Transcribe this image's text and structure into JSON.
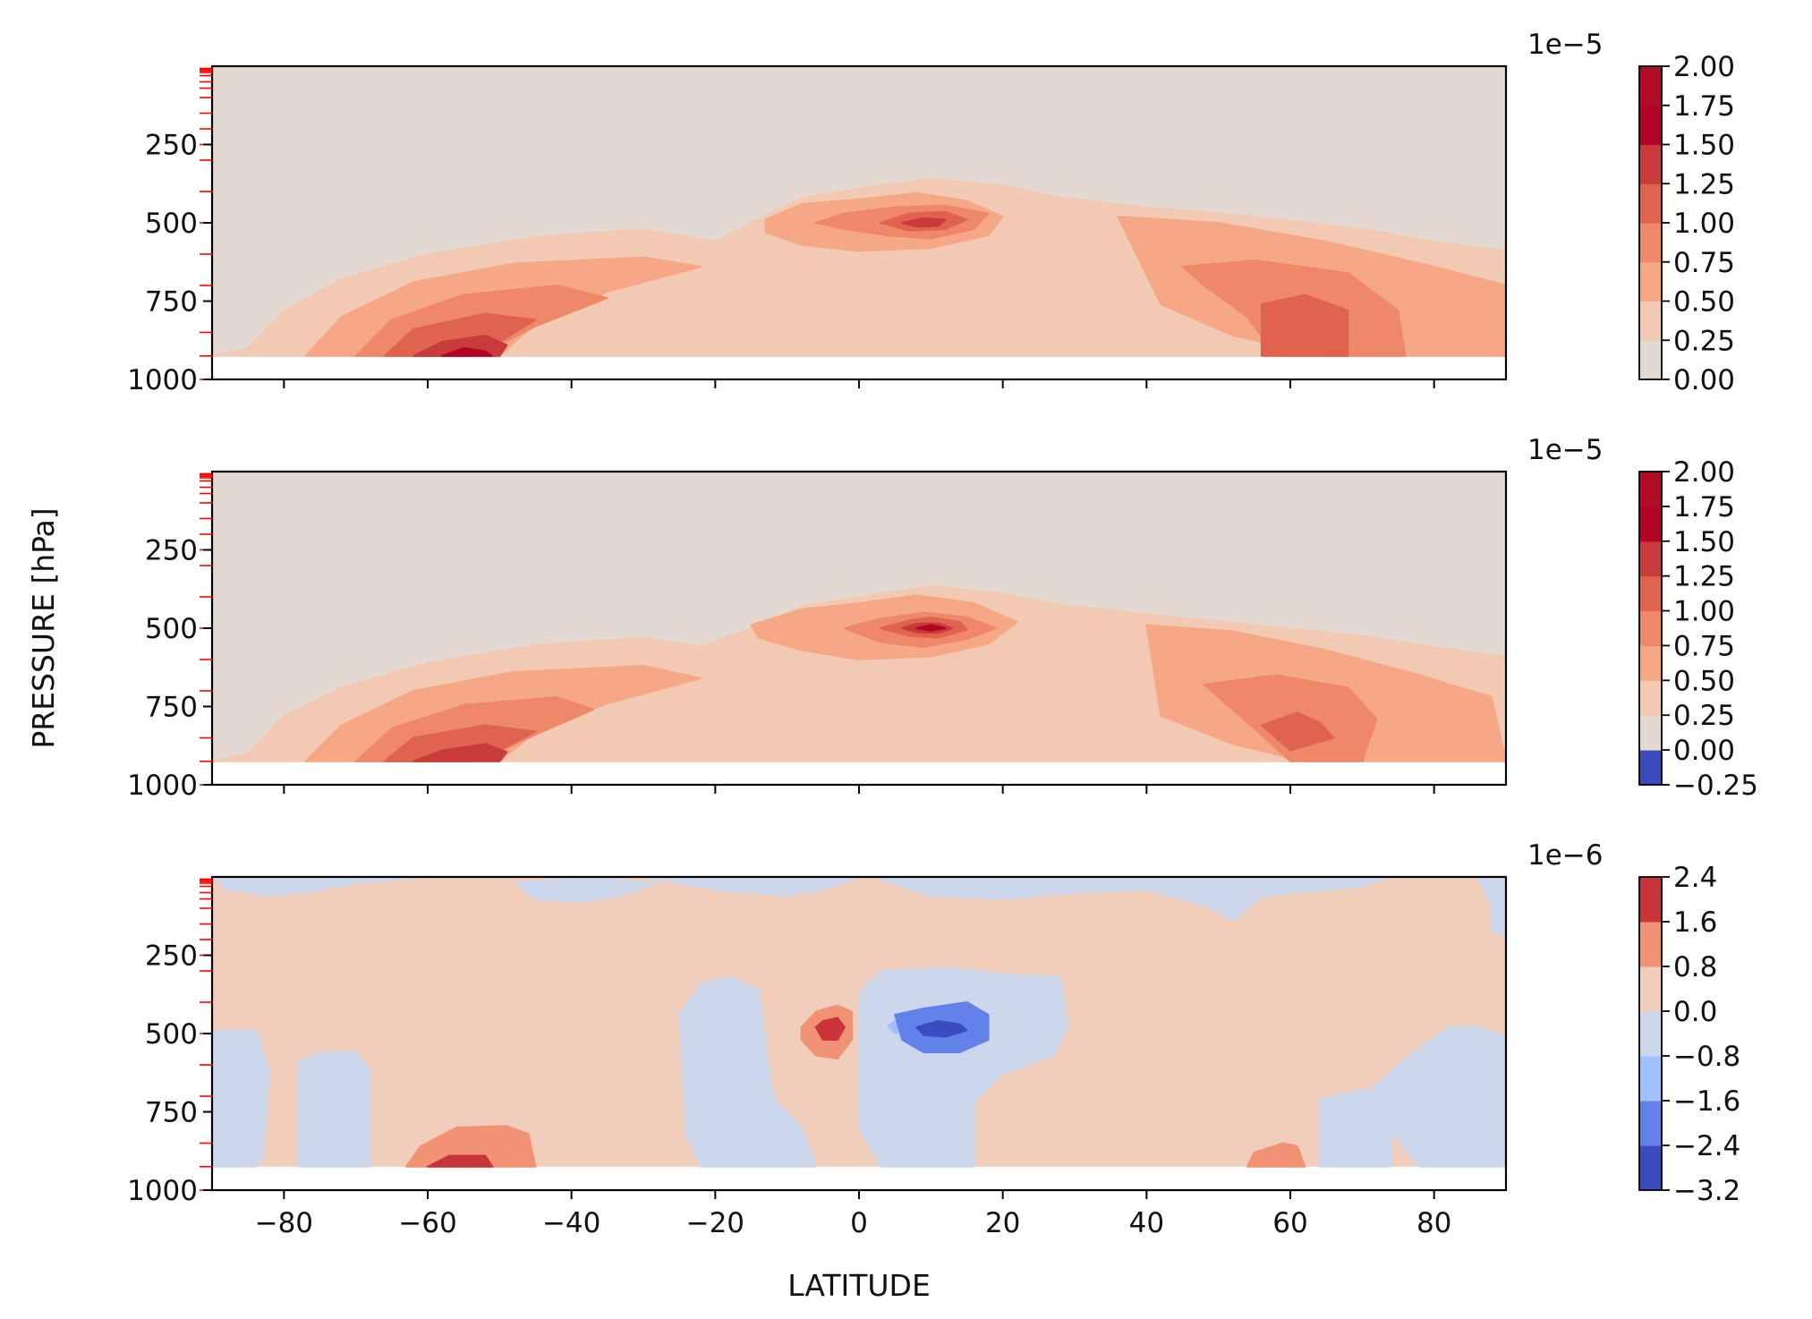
{
  "figure": {
    "ylabel": "PRESSURE [hPa]",
    "xlabel": "LATITUDE"
  },
  "chart_data": [
    {
      "type": "heatmap",
      "panel": "top",
      "subtype": "filled-contour",
      "xlim": [
        -90,
        90
      ],
      "ylim": [
        1000,
        0
      ],
      "y_inverted": true,
      "surface_level": 925,
      "x_ticks": [
        -80,
        -60,
        -40,
        -20,
        0,
        20,
        40,
        60,
        80
      ],
      "x_ticklabels_shown": false,
      "y_ticks": [
        250,
        500,
        750,
        1000
      ],
      "y_ticklabels": [
        "250",
        "500",
        "750",
        "1000"
      ],
      "model_levels": [
        7,
        10,
        15,
        20,
        30,
        50,
        70,
        100,
        150,
        200,
        250,
        300,
        400,
        500,
        600,
        700,
        850,
        925,
        1000
      ],
      "model_level_color": "#ff0000",
      "colorbar": {
        "offset_label": "1e−5",
        "levels": [
          0.0,
          0.25,
          0.5,
          0.75,
          1.0,
          1.25,
          1.5,
          1.75,
          2.0
        ],
        "ticklabels": [
          "2.00",
          "1.75",
          "1.50",
          "1.25",
          "1.00",
          "0.75",
          "0.50",
          "0.25",
          "0.00"
        ],
        "colors": [
          "#e4d9d2",
          "#f2c9b3",
          "#f6a886",
          "#ef8769",
          "#df634e",
          "#c93a3a",
          "#b40426",
          "#b10b26"
        ],
        "cmap": "coolwarm"
      },
      "features": [
        {
          "lat": -57,
          "p": 880,
          "value": 1.9,
          "unit": "1e-5"
        },
        {
          "lat": 10,
          "p": 490,
          "value": 1.3,
          "unit": "1e-5"
        },
        {
          "lat": 62,
          "p": 820,
          "value": 1.3,
          "unit": "1e-5"
        }
      ]
    },
    {
      "type": "heatmap",
      "panel": "middle",
      "subtype": "filled-contour",
      "xlim": [
        -90,
        90
      ],
      "ylim": [
        1000,
        0
      ],
      "y_inverted": true,
      "surface_level": 925,
      "x_ticks": [
        -80,
        -60,
        -40,
        -20,
        0,
        20,
        40,
        60,
        80
      ],
      "x_ticklabels_shown": false,
      "y_ticks": [
        250,
        500,
        750,
        1000
      ],
      "y_ticklabels": [
        "250",
        "500",
        "750",
        "1000"
      ],
      "model_levels": [
        7,
        10,
        15,
        20,
        30,
        50,
        70,
        100,
        150,
        200,
        250,
        300,
        400,
        500,
        600,
        700,
        850,
        925,
        1000
      ],
      "model_level_color": "#ff0000",
      "colorbar": {
        "offset_label": "1e−5",
        "levels": [
          -0.25,
          0.0,
          0.25,
          0.5,
          0.75,
          1.0,
          1.25,
          1.5,
          1.75,
          2.0
        ],
        "ticklabels": [
          "2.00",
          "1.75",
          "1.50",
          "1.25",
          "1.00",
          "0.75",
          "0.50",
          "0.25",
          "0.00",
          "−0.25"
        ],
        "colors": [
          "#3b4cc0",
          "#e4d9d2",
          "#f2c9b3",
          "#f6a886",
          "#ef8769",
          "#df634e",
          "#c93a3a",
          "#b40426",
          "#b10b26"
        ],
        "cmap": "coolwarm"
      },
      "features": [
        {
          "lat": -57,
          "p": 860,
          "value": 1.4,
          "unit": "1e-5"
        },
        {
          "lat": 10,
          "p": 490,
          "value": 1.9,
          "unit": "1e-5"
        },
        {
          "lat": 60,
          "p": 840,
          "value": 1.1,
          "unit": "1e-5"
        }
      ]
    },
    {
      "type": "heatmap",
      "panel": "bottom",
      "subtype": "filled-contour",
      "xlim": [
        -90,
        90
      ],
      "ylim": [
        1000,
        0
      ],
      "y_inverted": true,
      "surface_level": 925,
      "x_ticks": [
        -80,
        -60,
        -40,
        -20,
        0,
        20,
        40,
        60,
        80
      ],
      "x_ticklabels": [
        "−80",
        "−60",
        "−40",
        "−20",
        "0",
        "20",
        "40",
        "60",
        "80"
      ],
      "y_ticks": [
        250,
        500,
        750,
        1000
      ],
      "y_ticklabels": [
        "250",
        "500",
        "750",
        "1000"
      ],
      "model_levels": [
        7,
        10,
        15,
        20,
        30,
        50,
        70,
        100,
        150,
        200,
        250,
        300,
        400,
        500,
        600,
        700,
        850,
        925,
        1000
      ],
      "model_level_color": "#ff0000",
      "colorbar": {
        "offset_label": "1e−6",
        "levels": [
          -3.2,
          -2.4,
          -1.6,
          -0.8,
          0.0,
          0.8,
          1.6,
          2.4
        ],
        "ticklabels": [
          "2.4",
          "1.6",
          "0.8",
          "0.0",
          "−0.8",
          "−1.6",
          "−2.4",
          "−3.2"
        ],
        "colors": [
          "#3b4cc0",
          "#6282ea",
          "#a1c0ff",
          "#ccd7ec",
          "#f1cdbb",
          "#f29274",
          "#c9333a"
        ],
        "cmap": "coolwarm"
      },
      "features": [
        {
          "lat": -4,
          "p": 470,
          "value": 2.0,
          "unit": "1e-6"
        },
        {
          "lat": 12,
          "p": 480,
          "value": -3.0,
          "unit": "1e-6"
        },
        {
          "lat": -55,
          "p": 890,
          "value": 1.8,
          "unit": "1e-6"
        },
        {
          "lat": 60,
          "p": 860,
          "value": 1.0,
          "unit": "1e-6"
        }
      ]
    }
  ]
}
